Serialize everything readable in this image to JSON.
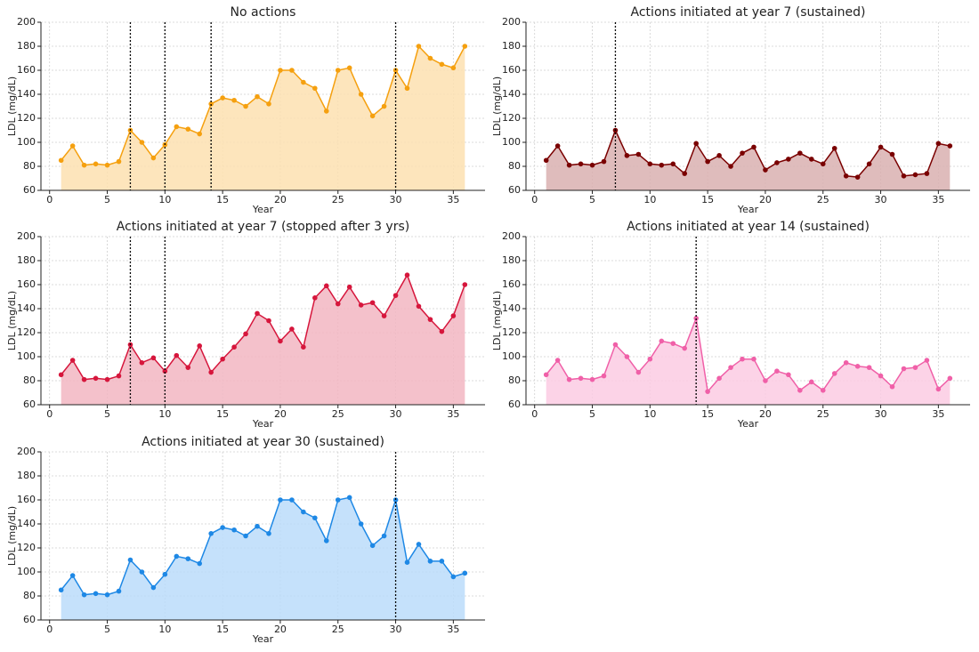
{
  "chart_data": [
    {
      "type": "line",
      "title": "No actions",
      "x_label": "Year",
      "y_label": "LDL (mg/dL)",
      "x": [
        1,
        2,
        3,
        4,
        5,
        6,
        7,
        8,
        9,
        10,
        11,
        12,
        13,
        14,
        15,
        16,
        17,
        18,
        19,
        20,
        21,
        22,
        23,
        24,
        25,
        26,
        27,
        28,
        29,
        30,
        31,
        32,
        33,
        34,
        35,
        36
      ],
      "values": [
        85,
        97,
        81,
        82,
        81,
        84,
        110,
        100,
        87,
        98,
        113,
        111,
        107,
        132,
        137,
        135,
        130,
        138,
        132,
        160,
        160,
        150,
        145,
        126,
        160,
        162,
        140,
        122,
        130,
        160,
        145,
        180,
        170,
        165,
        162,
        180
      ],
      "color": "#f5a00f",
      "fill": "#fde0b0",
      "vlines": [
        7,
        10,
        14,
        30
      ],
      "xlim": [
        -0.75,
        37.75
      ],
      "ylim": [
        60,
        200
      ],
      "xticks": [
        0,
        5,
        10,
        15,
        20,
        25,
        30,
        35
      ],
      "yticks": [
        60,
        80,
        100,
        120,
        140,
        160,
        180,
        200
      ],
      "grid": true
    },
    {
      "type": "line",
      "title": "Actions initiated at year 7 (sustained)",
      "x_label": "Year",
      "y_label": "LDL (mg/dL)",
      "x": [
        1,
        2,
        3,
        4,
        5,
        6,
        7,
        8,
        9,
        10,
        11,
        12,
        13,
        14,
        15,
        16,
        17,
        18,
        19,
        20,
        21,
        22,
        23,
        24,
        25,
        26,
        27,
        28,
        29,
        30,
        31,
        32,
        33,
        34,
        35,
        36
      ],
      "values": [
        85,
        97,
        81,
        82,
        81,
        84,
        110,
        89,
        90,
        82,
        81,
        82,
        74,
        99,
        84,
        89,
        80,
        91,
        96,
        77,
        83,
        86,
        91,
        86,
        82,
        95,
        72,
        71,
        82,
        96,
        90,
        72,
        73,
        74,
        99,
        97
      ],
      "color": "#7a0000",
      "fill": "#d9b0b0",
      "vlines": [
        7
      ],
      "xlim": [
        -0.75,
        37.75
      ],
      "ylim": [
        60,
        200
      ],
      "xticks": [
        0,
        5,
        10,
        15,
        20,
        25,
        30,
        35
      ],
      "yticks": [
        60,
        80,
        100,
        120,
        140,
        160,
        180,
        200
      ],
      "grid": true
    },
    {
      "type": "line",
      "title": "Actions initiated at year 7 (stopped after 3 yrs)",
      "x_label": "Year",
      "y_label": "LDL (mg/dL)",
      "x": [
        1,
        2,
        3,
        4,
        5,
        6,
        7,
        8,
        9,
        10,
        11,
        12,
        13,
        14,
        15,
        16,
        17,
        18,
        19,
        20,
        21,
        22,
        23,
        24,
        25,
        26,
        27,
        28,
        29,
        30,
        31,
        32,
        33,
        34,
        35,
        36
      ],
      "values": [
        85,
        97,
        81,
        82,
        81,
        84,
        110,
        95,
        99,
        88,
        101,
        91,
        109,
        87,
        98,
        108,
        119,
        136,
        130,
        113,
        123,
        108,
        149,
        159,
        144,
        158,
        143,
        145,
        134,
        151,
        168,
        142,
        131,
        121,
        134,
        160
      ],
      "color": "#d6163c",
      "fill": "#f2b6c2",
      "vlines": [
        7,
        10
      ],
      "xlim": [
        -0.75,
        37.75
      ],
      "ylim": [
        60,
        200
      ],
      "xticks": [
        0,
        5,
        10,
        15,
        20,
        25,
        30,
        35
      ],
      "yticks": [
        60,
        80,
        100,
        120,
        140,
        160,
        180,
        200
      ],
      "grid": true
    },
    {
      "type": "line",
      "title": "Actions initiated at year 14 (sustained)",
      "x_label": "Year",
      "y_label": "LDL (mg/dL)",
      "x": [
        1,
        2,
        3,
        4,
        5,
        6,
        7,
        8,
        9,
        10,
        11,
        12,
        13,
        14,
        15,
        16,
        17,
        18,
        19,
        20,
        21,
        22,
        23,
        24,
        25,
        26,
        27,
        28,
        29,
        30,
        31,
        32,
        33,
        34,
        35,
        36
      ],
      "values": [
        85,
        97,
        81,
        82,
        81,
        84,
        110,
        100,
        87,
        98,
        113,
        111,
        107,
        132,
        71,
        82,
        91,
        98,
        98,
        80,
        88,
        85,
        72,
        79,
        72,
        86,
        95,
        92,
        91,
        84,
        75,
        90,
        91,
        97,
        73,
        82
      ],
      "color": "#f060a8",
      "fill": "#fccbe3",
      "vlines": [
        14
      ],
      "xlim": [
        -0.75,
        37.75
      ],
      "ylim": [
        60,
        200
      ],
      "xticks": [
        0,
        5,
        10,
        15,
        20,
        25,
        30,
        35
      ],
      "yticks": [
        60,
        80,
        100,
        120,
        140,
        160,
        180,
        200
      ],
      "grid": true
    },
    {
      "type": "line",
      "title": "Actions initiated at year 30 (sustained)",
      "x_label": "Year",
      "y_label": "LDL (mg/dL)",
      "x": [
        1,
        2,
        3,
        4,
        5,
        6,
        7,
        8,
        9,
        10,
        11,
        12,
        13,
        14,
        15,
        16,
        17,
        18,
        19,
        20,
        21,
        22,
        23,
        24,
        25,
        26,
        27,
        28,
        29,
        30,
        31,
        32,
        33,
        34,
        35,
        36
      ],
      "values": [
        85,
        97,
        81,
        82,
        81,
        84,
        110,
        100,
        87,
        98,
        113,
        111,
        107,
        132,
        137,
        135,
        130,
        138,
        132,
        160,
        160,
        150,
        145,
        126,
        160,
        162,
        140,
        122,
        130,
        160,
        108,
        123,
        109,
        109,
        96,
        99
      ],
      "color": "#1e88e5",
      "fill": "#bbdcfa",
      "vlines": [
        30
      ],
      "xlim": [
        -0.75,
        37.75
      ],
      "ylim": [
        60,
        200
      ],
      "xticks": [
        0,
        5,
        10,
        15,
        20,
        25,
        30,
        35
      ],
      "yticks": [
        60,
        80,
        100,
        120,
        140,
        160,
        180,
        200
      ],
      "grid": true
    }
  ]
}
